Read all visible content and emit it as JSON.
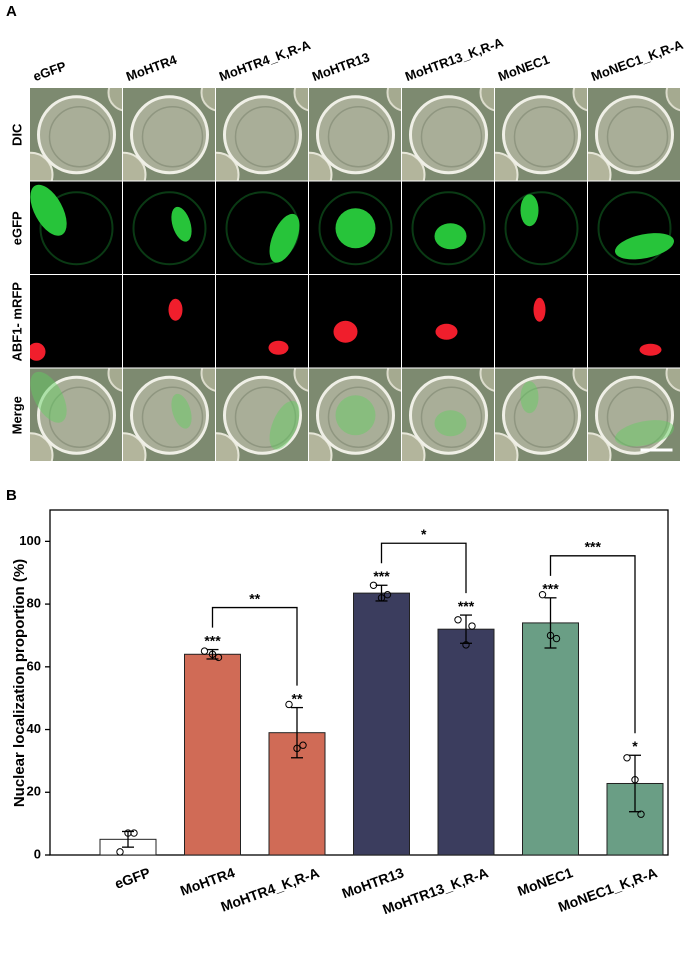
{
  "panel_a": {
    "label": "A",
    "columns": [
      "eGFP",
      "MoHTR4",
      "MoHTR4_K,R-A",
      "MoHTR13",
      "MoHTR13_K,R-A",
      "MoNEC1",
      "MoNEC1_K,R-A"
    ],
    "rows": [
      "DIC",
      "eGFP",
      "ABF1- mRFP",
      "Merge"
    ]
  },
  "chart_data": {
    "type": "bar",
    "panel_label": "B",
    "y_label": "Nuclear localization proportion (%)",
    "categories": [
      "eGFP",
      "MoHTR4",
      "MoHTR4_K,R-A",
      "MoHTR13",
      "MoHTR13_K,R-A",
      "MoNEC1",
      "MoNEC1_K,R-A"
    ],
    "values": [
      5,
      64,
      39,
      83.5,
      72,
      74,
      22.8
    ],
    "errors": [
      2.5,
      1.5,
      8,
      2.5,
      4.5,
      8,
      9
    ],
    "points": [
      [
        1,
        7,
        7
      ],
      [
        65,
        64,
        63
      ],
      [
        48,
        34,
        35
      ],
      [
        86,
        82,
        83
      ],
      [
        75,
        67,
        73
      ],
      [
        83,
        70,
        69
      ],
      [
        31,
        24,
        13
      ]
    ],
    "colors": [
      "#ffffff",
      "#d06b56",
      "#d06b56",
      "#3b3d5e",
      "#3b3d5e",
      "#6a9e85",
      "#6a9e85"
    ],
    "significance": [
      null,
      "***",
      "**",
      "***",
      "***",
      "***",
      "*"
    ],
    "comparisons": [
      {
        "pair": [
          1,
          2
        ],
        "label": "**"
      },
      {
        "pair": [
          3,
          4
        ],
        "label": "*"
      },
      {
        "pair": [
          5,
          6
        ],
        "label": "***"
      }
    ],
    "ylim": [
      0,
      110
    ],
    "yticks": [
      0,
      20,
      40,
      60,
      80,
      100
    ]
  }
}
